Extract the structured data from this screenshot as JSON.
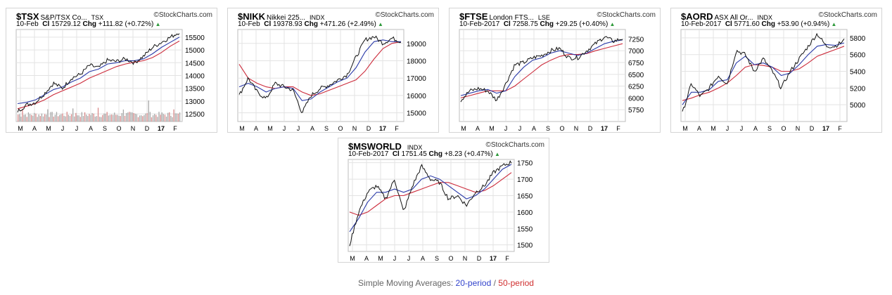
{
  "colors": {
    "price": "#111111",
    "sma20": "#2a3aa8",
    "sma50": "#cc2b3b",
    "grid": "#e3e3e3",
    "up": "#2f9a3c",
    "vol": "#a8a8a8",
    "volred": "#d98a8a"
  },
  "legend": {
    "prefix": "Simple Moving Averages: ",
    "sma20": "20-period",
    "sep": " / ",
    "sma50": "50-period"
  },
  "charts": [
    {
      "symbol": "$TSX",
      "name": "S&P/TSX Co...",
      "exchange": "TSX",
      "source": "©StockCharts.com",
      "date": "10-Feb",
      "close_label": "Cl",
      "close": "15729.12",
      "chg_label": "Chg",
      "change": "+111.82 (+0.72%)",
      "chart_data": {
        "type": "line",
        "x_ticks": [
          "M",
          "A",
          "M",
          "J",
          "J",
          "A",
          "S",
          "O",
          "N",
          "D",
          "17",
          "F"
        ],
        "y_ticks": [
          12500,
          13000,
          13500,
          14000,
          14500,
          15000,
          15500
        ],
        "ylim": [
          12200,
          15800
        ],
        "price": [
          12600,
          12850,
          12950,
          13300,
          13700,
          13500,
          13900,
          14050,
          14400,
          14300,
          14600,
          14550,
          14650,
          14500,
          14750,
          15100,
          15300,
          15500,
          15700
        ],
        "sma20": [
          12900,
          12950,
          13050,
          13250,
          13450,
          13550,
          13750,
          13900,
          14150,
          14250,
          14450,
          14500,
          14580,
          14580,
          14650,
          14850,
          15100,
          15300,
          15500
        ],
        "sma50": [
          12700,
          12800,
          12900,
          13050,
          13250,
          13400,
          13550,
          13700,
          13900,
          14050,
          14200,
          14350,
          14450,
          14520,
          14580,
          14700,
          14900,
          15150,
          15350
        ],
        "volume": true
      }
    },
    {
      "symbol": "$NIKK",
      "name": "Nikkei 225...",
      "exchange": "INDX",
      "source": "©StockCharts.com",
      "date": "10-Feb",
      "close_label": "Cl",
      "close": "19378.93",
      "chg_label": "Chg",
      "change": "+471.26 (+2.49%)",
      "chart_data": {
        "type": "line",
        "x_ticks": [
          "M",
          "A",
          "M",
          "J",
          "J",
          "A",
          "S",
          "O",
          "N",
          "D",
          "17",
          "F"
        ],
        "y_ticks": [
          15000,
          16000,
          17000,
          18000,
          19000
        ],
        "ylim": [
          14500,
          19800
        ],
        "price": [
          16000,
          17000,
          16200,
          15800,
          16700,
          16500,
          16300,
          15000,
          16000,
          16400,
          16600,
          16900,
          17200,
          18200,
          19200,
          19400,
          19000,
          19300,
          19100
        ],
        "sma20": [
          16500,
          16700,
          16500,
          16200,
          16400,
          16500,
          16400,
          15700,
          15800,
          16200,
          16500,
          16800,
          17000,
          17600,
          18500,
          19100,
          19200,
          19100,
          19100
        ],
        "sma50": [
          17800,
          17000,
          16700,
          16500,
          16400,
          16500,
          16500,
          16200,
          16000,
          16100,
          16300,
          16500,
          16700,
          16900,
          17400,
          18100,
          18700,
          19000,
          19100
        ],
        "volume": false
      }
    },
    {
      "symbol": "$FTSE",
      "name": "London FTS...",
      "exchange": "LSE",
      "source": "©StockCharts.com",
      "date": "10-Feb-2017",
      "close_label": "Cl",
      "close": "7258.75",
      "chg_label": "Chg",
      "change": "+29.25 (+0.40%)",
      "chart_data": {
        "type": "line",
        "x_ticks": [
          "M",
          "A",
          "M",
          "J",
          "J",
          "A",
          "S",
          "O",
          "N",
          "D",
          "17",
          "F"
        ],
        "y_ticks": [
          5750,
          6000,
          6250,
          6500,
          6750,
          7000,
          7250
        ],
        "ylim": [
          5500,
          7450
        ],
        "price": [
          5950,
          6150,
          6200,
          6150,
          5950,
          6300,
          6700,
          6750,
          6850,
          6900,
          7000,
          7050,
          6850,
          6850,
          7000,
          7150,
          7300,
          7200,
          7260
        ],
        "sma20": [
          6050,
          6100,
          6150,
          6180,
          6100,
          6150,
          6450,
          6650,
          6800,
          6850,
          6950,
          7000,
          6950,
          6900,
          6950,
          7050,
          7150,
          7200,
          7230
        ],
        "sma50": [
          6000,
          6050,
          6100,
          6150,
          6150,
          6150,
          6250,
          6400,
          6550,
          6700,
          6800,
          6880,
          6920,
          6920,
          6940,
          7000,
          7050,
          7100,
          7150
        ],
        "volume": false
      }
    },
    {
      "symbol": "$AORD",
      "name": "ASX All Or...",
      "exchange": "INDX",
      "source": "©StockCharts.com",
      "date": "10-Feb-2017",
      "close_label": "Cl",
      "close": "5771.60",
      "chg_label": "Chg",
      "change": "+53.90 (+0.94%)",
      "chart_data": {
        "type": "line",
        "x_ticks": [
          "M",
          "A",
          "M",
          "J",
          "J",
          "A",
          "S",
          "O",
          "N",
          "D",
          "17",
          "F"
        ],
        "y_ticks": [
          5000,
          5200,
          5400,
          5600,
          5800
        ],
        "ylim": [
          4800,
          5900
        ],
        "price": [
          4900,
          5250,
          5100,
          5200,
          5350,
          5250,
          5650,
          5600,
          5400,
          5550,
          5400,
          5200,
          5400,
          5550,
          5700,
          5850,
          5700,
          5700,
          5770
        ],
        "sma20": [
          5000,
          5150,
          5150,
          5180,
          5280,
          5300,
          5500,
          5580,
          5480,
          5500,
          5450,
          5350,
          5380,
          5480,
          5600,
          5700,
          5720,
          5710,
          5740
        ],
        "sma50": [
          5050,
          5080,
          5120,
          5150,
          5200,
          5260,
          5350,
          5450,
          5480,
          5470,
          5450,
          5400,
          5400,
          5430,
          5500,
          5580,
          5620,
          5660,
          5700
        ],
        "volume": false
      }
    },
    {
      "symbol": "$MSWORLD",
      "name": "",
      "exchange": "INDX",
      "source": "©StockCharts.com",
      "date": "10-Feb-2017",
      "close_label": "Cl",
      "close": "1751.45",
      "chg_label": "Chg",
      "change": "+8.23 (+0.47%)",
      "chart_data": {
        "type": "line",
        "x_ticks": [
          "M",
          "A",
          "M",
          "J",
          "J",
          "A",
          "S",
          "O",
          "N",
          "D",
          "17",
          "F"
        ],
        "y_ticks": [
          1500,
          1550,
          1600,
          1650,
          1700,
          1750
        ],
        "ylim": [
          1480,
          1760
        ],
        "price": [
          1500,
          1600,
          1660,
          1680,
          1640,
          1700,
          1600,
          1680,
          1740,
          1700,
          1690,
          1640,
          1650,
          1620,
          1660,
          1680,
          1720,
          1740,
          1752
        ],
        "sma20": [
          1540,
          1580,
          1630,
          1660,
          1660,
          1670,
          1660,
          1670,
          1700,
          1710,
          1700,
          1680,
          1660,
          1640,
          1650,
          1670,
          1700,
          1730,
          1745
        ],
        "sma50": [
          1600,
          1590,
          1600,
          1620,
          1640,
          1650,
          1650,
          1660,
          1670,
          1680,
          1690,
          1690,
          1680,
          1670,
          1660,
          1665,
          1680,
          1700,
          1720
        ],
        "volume": false
      }
    }
  ]
}
